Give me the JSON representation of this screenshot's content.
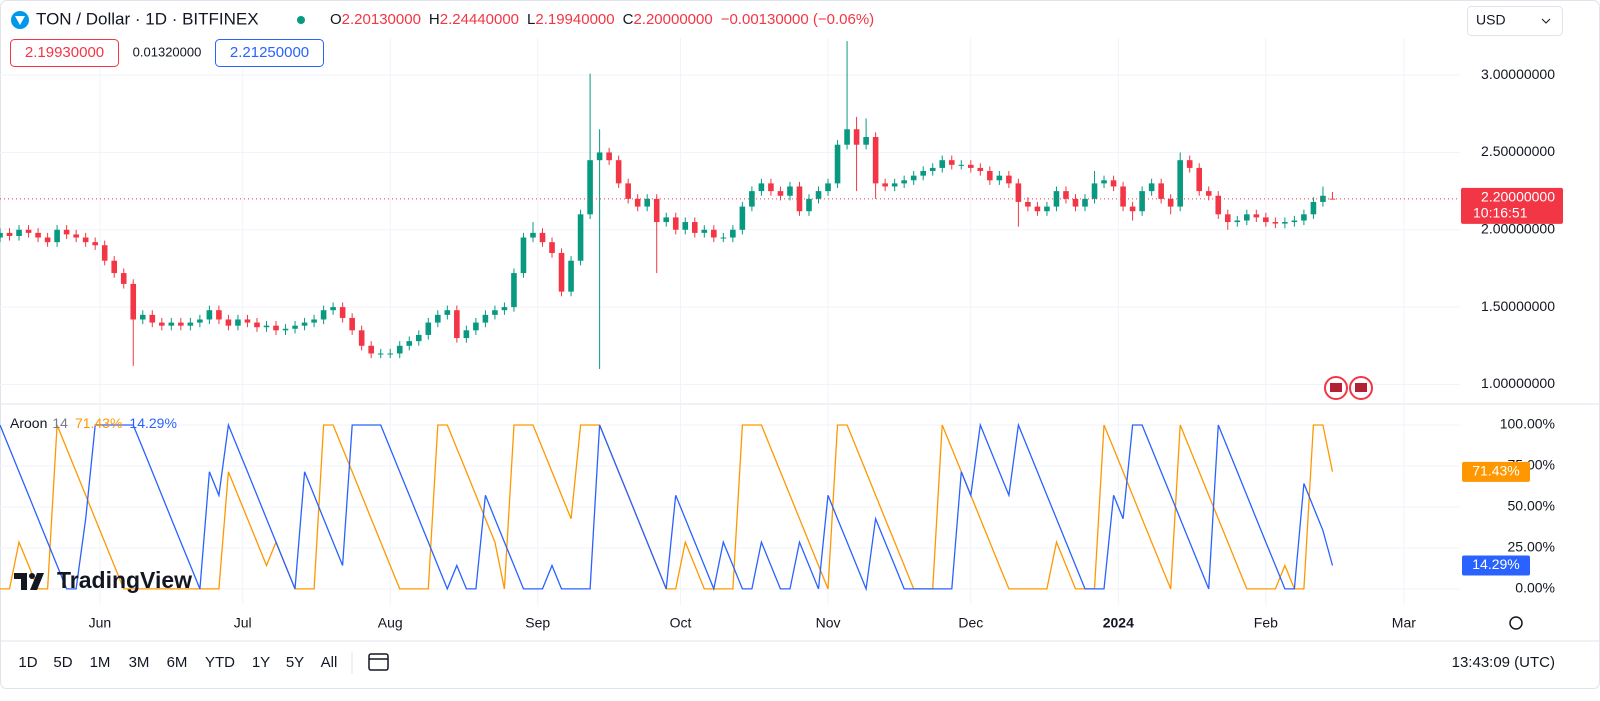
{
  "header": {
    "symbol": "TON / Dollar · 1D · BITFINEX",
    "ohlc": [
      {
        "key": "O",
        "value": "2.20130000"
      },
      {
        "key": "H",
        "value": "2.24440000"
      },
      {
        "key": "L",
        "value": "2.19940000"
      },
      {
        "key": "C",
        "value": "2.20000000"
      }
    ],
    "change": "−0.00130000 (−0.06%)",
    "currency": "USD",
    "bid": "2.19930000",
    "spread": "0.01320000",
    "ask": "2.21250000"
  },
  "chart_data": [
    {
      "type": "candlestick",
      "up_color": "#089981",
      "down_color": "#f23645",
      "grid": true,
      "xlim": [
        0,
        153.4
      ],
      "xticks": [
        {
          "value": 10.5,
          "label": "Jun"
        },
        {
          "value": 25.5,
          "label": "Jul"
        },
        {
          "value": 41,
          "label": "Aug"
        },
        {
          "value": 56.5,
          "label": "Sep"
        },
        {
          "value": 71.5,
          "label": "Oct"
        },
        {
          "value": 87,
          "label": "Nov"
        },
        {
          "value": 102,
          "label": "Dec"
        },
        {
          "value": 117.5,
          "label": "2024"
        },
        {
          "value": 133,
          "label": "Feb"
        },
        {
          "value": 147.5,
          "label": "Mar"
        }
      ],
      "ylim": [
        0.88,
        3.24
      ],
      "yticks": [
        {
          "value": 1,
          "label": "1.00000000"
        },
        {
          "value": 1.5,
          "label": "1.50000000"
        },
        {
          "value": 2,
          "label": "2.00000000"
        },
        {
          "value": 2.5,
          "label": "2.50000000"
        },
        {
          "value": 3,
          "label": "3.00000000"
        }
      ],
      "last_label": "2.20000000",
      "countdown": "10:16:51",
      "open": [
        1.95,
        1.98,
        1.96,
        2.0,
        1.98,
        1.95,
        1.92,
        2.0,
        1.97,
        1.95,
        1.92,
        1.9,
        1.8,
        1.72,
        1.65,
        1.42,
        1.45,
        1.4,
        1.38,
        1.4,
        1.38,
        1.4,
        1.42,
        1.48,
        1.42,
        1.38,
        1.42,
        1.4,
        1.37,
        1.38,
        1.35,
        1.36,
        1.38,
        1.4,
        1.42,
        1.48,
        1.5,
        1.43,
        1.35,
        1.25,
        1.2,
        1.2,
        1.2,
        1.25,
        1.28,
        1.32,
        1.4,
        1.45,
        1.48,
        1.3,
        1.35,
        1.4,
        1.45,
        1.48,
        1.5,
        1.72,
        1.95,
        1.98,
        1.92,
        1.85,
        1.6,
        1.8,
        2.1,
        2.45,
        2.5,
        2.45,
        2.3,
        2.2,
        2.15,
        2.2,
        2.05,
        2.08,
        2.0,
        2.05,
        1.98,
        2.0,
        1.95,
        1.95,
        2.0,
        2.15,
        2.25,
        2.3,
        2.25,
        2.22,
        2.28,
        2.12,
        2.2,
        2.25,
        2.3,
        2.55,
        2.65,
        2.55,
        2.6,
        2.3,
        2.28,
        2.3,
        2.32,
        2.35,
        2.38,
        2.4,
        2.45,
        2.42,
        2.42,
        2.4,
        2.38,
        2.32,
        2.35,
        2.3,
        2.18,
        2.15,
        2.12,
        2.15,
        2.25,
        2.2,
        2.15,
        2.2,
        2.3,
        2.32,
        2.28,
        2.15,
        2.12,
        2.25,
        2.3,
        2.2,
        2.15,
        2.45,
        2.4,
        2.25,
        2.22,
        2.1,
        2.05,
        2.06,
        2.1,
        2.08,
        2.05,
        2.04,
        2.05,
        2.06,
        2.1,
        2.18,
        2.2013
      ],
      "high": [
        2.01,
        2.01,
        2.03,
        2.03,
        2.01,
        1.98,
        2.03,
        2.03,
        2.0,
        1.98,
        1.95,
        1.93,
        1.83,
        1.75,
        1.68,
        1.48,
        1.48,
        1.43,
        1.43,
        1.43,
        1.43,
        1.45,
        1.51,
        1.51,
        1.45,
        1.45,
        1.45,
        1.43,
        1.41,
        1.41,
        1.39,
        1.41,
        1.43,
        1.45,
        1.51,
        1.53,
        1.53,
        1.46,
        1.38,
        1.28,
        1.23,
        1.23,
        1.28,
        1.31,
        1.35,
        1.43,
        1.48,
        1.51,
        1.51,
        1.38,
        1.43,
        1.48,
        1.51,
        1.53,
        1.75,
        1.98,
        2.05,
        2.01,
        1.95,
        1.88,
        1.83,
        2.13,
        3.01,
        2.65,
        2.53,
        2.48,
        2.33,
        2.23,
        2.23,
        2.23,
        2.11,
        2.11,
        2.08,
        2.08,
        2.03,
        2.03,
        1.98,
        2.03,
        2.18,
        2.28,
        2.33,
        2.33,
        2.28,
        2.31,
        2.31,
        2.23,
        2.28,
        2.33,
        2.58,
        3.22,
        2.73,
        2.72,
        2.63,
        2.33,
        2.33,
        2.35,
        2.38,
        2.41,
        2.43,
        2.48,
        2.48,
        2.45,
        2.45,
        2.43,
        2.41,
        2.38,
        2.38,
        2.33,
        2.21,
        2.18,
        2.18,
        2.28,
        2.28,
        2.23,
        2.23,
        2.38,
        2.35,
        2.35,
        2.31,
        2.18,
        2.28,
        2.33,
        2.33,
        2.23,
        2.5,
        2.48,
        2.43,
        2.28,
        2.25,
        2.13,
        2.09,
        2.13,
        2.13,
        2.11,
        2.08,
        2.08,
        2.09,
        2.13,
        2.21,
        2.28,
        2.2444
      ],
      "low": [
        1.92,
        1.93,
        1.93,
        1.95,
        1.92,
        1.89,
        1.89,
        1.94,
        1.92,
        1.89,
        1.87,
        1.77,
        1.69,
        1.62,
        1.12,
        1.39,
        1.37,
        1.35,
        1.35,
        1.35,
        1.35,
        1.37,
        1.39,
        1.39,
        1.35,
        1.35,
        1.37,
        1.34,
        1.34,
        1.32,
        1.32,
        1.33,
        1.35,
        1.37,
        1.39,
        1.45,
        1.4,
        1.32,
        1.22,
        1.17,
        1.17,
        1.17,
        1.17,
        1.22,
        1.25,
        1.29,
        1.37,
        1.42,
        1.27,
        1.27,
        1.32,
        1.37,
        1.42,
        1.45,
        1.47,
        1.69,
        1.92,
        1.89,
        1.82,
        1.57,
        1.57,
        1.77,
        2.07,
        1.1,
        2.42,
        2.27,
        2.17,
        2.12,
        2.12,
        1.72,
        2.02,
        1.97,
        1.97,
        1.95,
        1.95,
        1.92,
        1.92,
        1.92,
        1.97,
        2.12,
        2.22,
        2.22,
        2.19,
        2.19,
        2.09,
        2.09,
        2.17,
        2.22,
        2.27,
        2.52,
        2.25,
        2.52,
        2.2,
        2.25,
        2.25,
        2.27,
        2.29,
        2.32,
        2.35,
        2.37,
        2.39,
        2.39,
        2.37,
        2.35,
        2.29,
        2.29,
        2.27,
        2.02,
        2.12,
        2.09,
        2.09,
        2.12,
        2.17,
        2.12,
        2.12,
        2.17,
        2.27,
        2.25,
        2.12,
        2.06,
        2.09,
        2.22,
        2.17,
        2.1,
        2.12,
        2.37,
        2.22,
        2.19,
        2.07,
        2.0,
        2.02,
        2.03,
        2.05,
        2.02,
        2.01,
        2.01,
        2.02,
        2.03,
        2.07,
        2.15,
        2.1994
      ],
      "close": [
        1.98,
        1.96,
        2.0,
        1.98,
        1.95,
        1.92,
        2.0,
        1.97,
        1.95,
        1.92,
        1.9,
        1.8,
        1.72,
        1.65,
        1.42,
        1.45,
        1.4,
        1.38,
        1.4,
        1.38,
        1.4,
        1.42,
        1.48,
        1.42,
        1.38,
        1.42,
        1.4,
        1.37,
        1.38,
        1.35,
        1.36,
        1.38,
        1.4,
        1.42,
        1.48,
        1.5,
        1.43,
        1.35,
        1.25,
        1.2,
        1.2,
        1.2,
        1.25,
        1.28,
        1.32,
        1.4,
        1.45,
        1.48,
        1.3,
        1.35,
        1.4,
        1.45,
        1.48,
        1.5,
        1.72,
        1.95,
        1.98,
        1.92,
        1.85,
        1.6,
        1.8,
        2.1,
        2.45,
        2.5,
        2.45,
        2.3,
        2.2,
        2.15,
        2.2,
        2.05,
        2.08,
        2.0,
        2.05,
        1.98,
        2.0,
        1.95,
        1.95,
        2.0,
        2.15,
        2.25,
        2.3,
        2.25,
        2.22,
        2.28,
        2.12,
        2.2,
        2.25,
        2.3,
        2.55,
        2.65,
        2.55,
        2.6,
        2.3,
        2.28,
        2.3,
        2.32,
        2.35,
        2.38,
        2.4,
        2.45,
        2.42,
        2.42,
        2.4,
        2.38,
        2.32,
        2.35,
        2.3,
        2.18,
        2.15,
        2.12,
        2.15,
        2.25,
        2.2,
        2.15,
        2.2,
        2.3,
        2.32,
        2.28,
        2.15,
        2.12,
        2.25,
        2.3,
        2.2,
        2.15,
        2.45,
        2.4,
        2.25,
        2.22,
        2.1,
        2.05,
        2.06,
        2.1,
        2.08,
        2.05,
        2.04,
        2.05,
        2.06,
        2.1,
        2.18,
        2.22,
        2.2
      ]
    },
    {
      "type": "line",
      "title": "Aroon",
      "period": 14,
      "grid": true,
      "xlim": [
        0,
        153.4
      ],
      "ylim": [
        -9.8,
        112.2
      ],
      "yticks": [
        {
          "value": 0,
          "label": "0.00%"
        },
        {
          "value": 25,
          "label": "25.00%"
        },
        {
          "value": 50,
          "label": "50.00%"
        },
        {
          "value": 75,
          "label": "75.00%"
        },
        {
          "value": 100,
          "label": "100.00%"
        }
      ],
      "series": [
        {
          "color": "#ff9800",
          "last_label": "71.43%",
          "values": [
            0,
            0,
            28.57,
            14.29,
            0,
            0,
            100,
            85.71,
            71.43,
            57.14,
            42.86,
            28.57,
            14.29,
            0,
            0,
            0,
            0,
            0,
            0,
            0,
            0,
            0,
            0,
            0,
            71.43,
            57.14,
            42.86,
            28.57,
            14.29,
            28.57,
            14.29,
            0,
            0,
            0,
            100,
            100,
            85.71,
            71.43,
            57.14,
            42.86,
            28.57,
            14.29,
            0,
            0,
            0,
            0,
            100,
            100,
            85.71,
            71.43,
            57.14,
            42.86,
            28.57,
            0,
            100,
            100,
            100,
            85.71,
            71.43,
            57.14,
            42.86,
            100,
            100,
            100,
            85.71,
            71.43,
            57.14,
            42.86,
            28.57,
            14.29,
            0,
            0,
            28.57,
            14.29,
            0,
            0,
            0,
            0,
            100,
            100,
            100,
            85.71,
            71.43,
            57.14,
            42.86,
            28.57,
            14.29,
            0,
            100,
            100,
            85.71,
            71.43,
            57.14,
            42.86,
            28.57,
            14.29,
            0,
            0,
            0,
            100,
            85.71,
            71.43,
            57.14,
            42.86,
            28.57,
            14.29,
            0,
            0,
            0,
            0,
            0,
            28.57,
            14.29,
            0,
            0,
            0,
            100,
            85.71,
            71.43,
            57.14,
            42.86,
            28.57,
            14.29,
            0,
            100,
            85.71,
            71.43,
            57.14,
            42.86,
            28.57,
            14.29,
            0,
            0,
            0,
            0,
            14.29,
            0,
            0,
            100,
            100,
            71.43
          ]
        },
        {
          "color": "#2962ff",
          "last_label": "14.29%",
          "values": [
            100,
            85.71,
            71.43,
            57.14,
            42.86,
            28.57,
            14.29,
            0,
            0,
            42.86,
            100,
            100,
            100,
            100,
            100,
            85.71,
            71.43,
            57.14,
            42.86,
            28.57,
            14.29,
            0,
            71.43,
            57.14,
            100,
            85.71,
            71.43,
            57.14,
            42.86,
            28.57,
            14.29,
            0,
            71.43,
            57.14,
            42.86,
            28.57,
            14.29,
            100,
            100,
            100,
            100,
            85.71,
            71.43,
            57.14,
            42.86,
            28.57,
            14.29,
            0,
            14.29,
            0,
            0,
            57.14,
            42.86,
            28.57,
            14.29,
            0,
            0,
            0,
            14.29,
            0,
            0,
            0,
            0,
            100,
            85.71,
            71.43,
            57.14,
            42.86,
            28.57,
            14.29,
            0,
            57.14,
            42.86,
            28.57,
            14.29,
            0,
            28.57,
            14.29,
            0,
            0,
            28.57,
            14.29,
            0,
            0,
            28.57,
            14.29,
            0,
            57.14,
            42.86,
            28.57,
            14.29,
            0,
            42.86,
            28.57,
            14.29,
            0,
            0,
            0,
            0,
            0,
            0,
            71.43,
            57.14,
            100,
            85.71,
            71.43,
            57.14,
            100,
            85.71,
            71.43,
            57.14,
            42.86,
            28.57,
            14.29,
            0,
            0,
            0,
            57.14,
            42.86,
            100,
            100,
            85.71,
            71.43,
            57.14,
            42.86,
            28.57,
            14.29,
            0,
            100,
            85.71,
            71.43,
            57.14,
            42.86,
            28.57,
            14.29,
            0,
            0,
            64.29,
            50,
            35.71,
            14.29
          ]
        }
      ]
    }
  ],
  "branding": "TradingView",
  "toolbar": {
    "ranges": [
      "1D",
      "5D",
      "1M",
      "3M",
      "6M",
      "YTD",
      "1Y",
      "5Y",
      "All"
    ],
    "clock": "13:43:09 (UTC)"
  }
}
